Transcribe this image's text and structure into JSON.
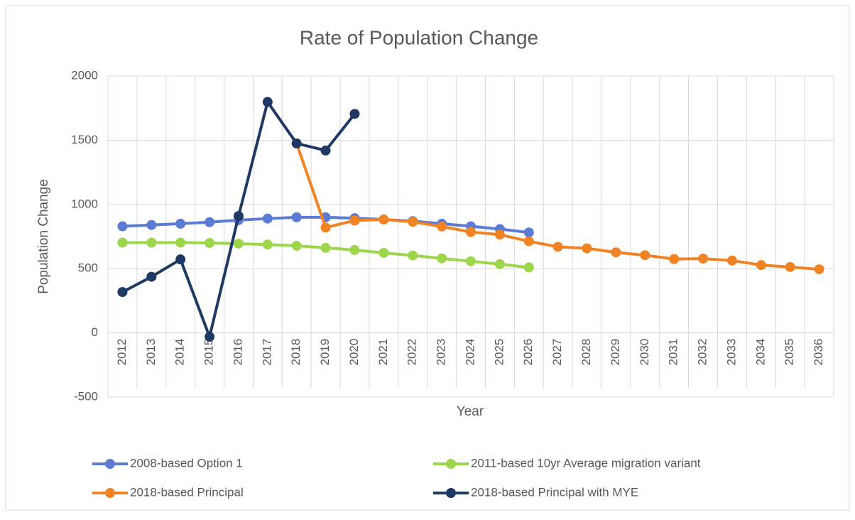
{
  "chart_data": {
    "type": "line",
    "title": "Rate of Population Change",
    "x_label": "Year",
    "y_label": "Population Change",
    "categories": [
      "2012",
      "2013",
      "2014",
      "2015",
      "2016",
      "2017",
      "2018",
      "2019",
      "2020",
      "2021",
      "2022",
      "2023",
      "2024",
      "2025",
      "2026",
      "2027",
      "2028",
      "2029",
      "2030",
      "2031",
      "2032",
      "2033",
      "2034",
      "2035",
      "2036"
    ],
    "series": [
      {
        "name": "2008-based Option 1",
        "color": "#5b7bd5",
        "values": [
          830,
          840,
          850,
          862,
          878,
          890,
          900,
          900,
          893,
          883,
          870,
          850,
          830,
          808,
          782,
          null,
          null,
          null,
          null,
          null,
          null,
          null,
          null,
          null,
          null
        ]
      },
      {
        "name": "2011-based 10yr Average migration variant",
        "color": "#9dd64b",
        "values": [
          703,
          703,
          703,
          700,
          695,
          688,
          678,
          662,
          645,
          623,
          603,
          580,
          558,
          535,
          510,
          null,
          null,
          null,
          null,
          null,
          null,
          null,
          null,
          null,
          null
        ]
      },
      {
        "name": "2018-based Principal",
        "color": "#f08323",
        "values": [
          null,
          null,
          null,
          null,
          null,
          null,
          1475,
          820,
          875,
          883,
          865,
          828,
          785,
          765,
          713,
          670,
          658,
          627,
          605,
          575,
          578,
          563,
          528,
          513,
          495
        ]
      },
      {
        "name": "2018-based Principal with MYE",
        "color": "#203864",
        "values": [
          318,
          437,
          572,
          -30,
          910,
          1798,
          1475,
          1420,
          1705,
          null,
          null,
          null,
          null,
          null,
          null,
          null,
          null,
          null,
          null,
          null,
          null,
          null,
          null,
          null,
          null
        ]
      }
    ],
    "ylim": [
      -500,
      2000
    ],
    "yticks": [
      -500,
      0,
      500,
      1000,
      1500,
      2000
    ],
    "grid": true
  }
}
